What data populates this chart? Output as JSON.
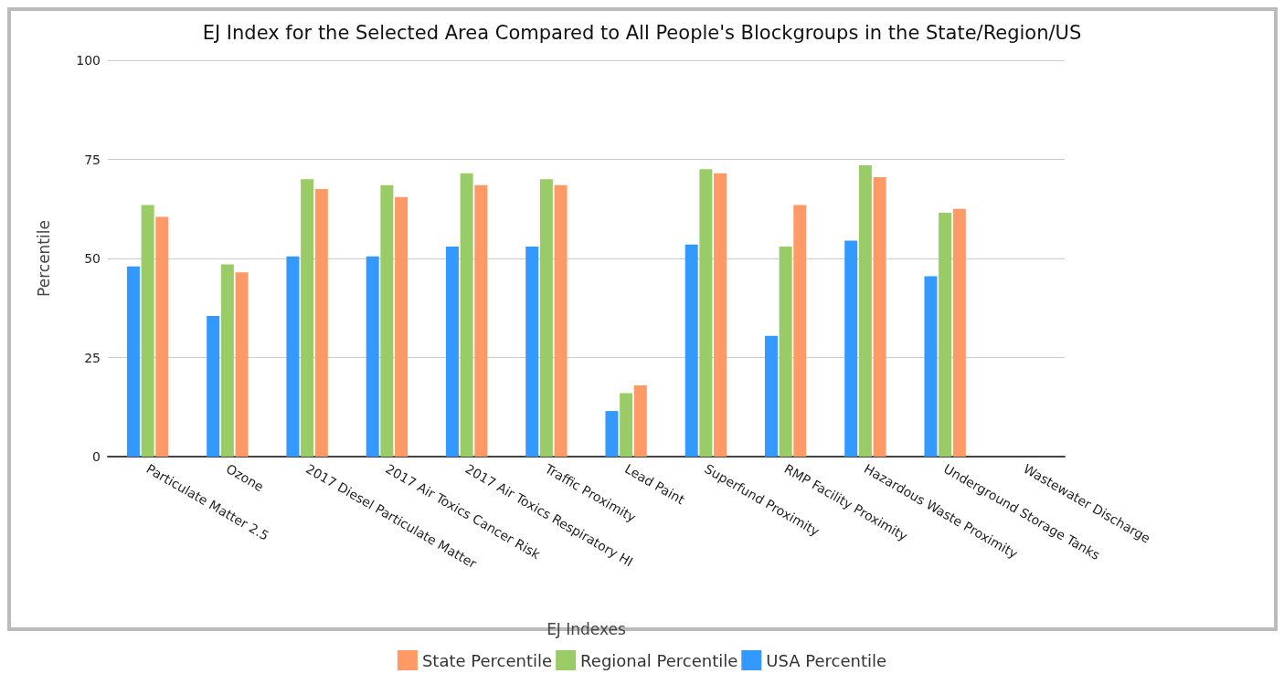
{
  "chart_data": {
    "type": "bar",
    "title": "EJ Index for the Selected Area Compared to All People's Blockgroups in the State/Region/US",
    "xlabel": "EJ Indexes",
    "ylabel": "Percentile",
    "categories": [
      "Particulate Matter 2.5",
      "Ozone",
      "2017 Diesel Particulate Matter",
      "2017 Air Toxics Cancer Risk",
      "2017 Air Toxics Respiratory HI",
      "Traffic Proximity",
      "Lead Paint",
      "Superfund Proximity",
      "RMP Facility Proximity",
      "Hazardous Waste Proximity",
      "Underground Storage Tanks",
      "Wastewater Discharge"
    ],
    "series": [
      {
        "name": "USA Percentile",
        "color": "#3399ff",
        "values": [
          48,
          35.5,
          50.5,
          50.5,
          53,
          53,
          11.5,
          53.5,
          30.5,
          54.5,
          45.5,
          null
        ]
      },
      {
        "name": "Regional Percentile",
        "color": "#99cc66",
        "values": [
          63.5,
          48.5,
          70,
          68.5,
          71.5,
          70,
          16,
          72.5,
          53,
          73.5,
          61.5,
          null
        ]
      },
      {
        "name": "State Percentile",
        "color": "#ff9966",
        "values": [
          60.5,
          46.5,
          67.5,
          65.5,
          68.5,
          68.5,
          18,
          71.5,
          63.5,
          70.5,
          62.5,
          null
        ]
      }
    ],
    "ylim": [
      0,
      100
    ],
    "yticks": [
      0,
      25,
      50,
      75,
      100
    ],
    "grid": "y",
    "legend": "bottom"
  }
}
